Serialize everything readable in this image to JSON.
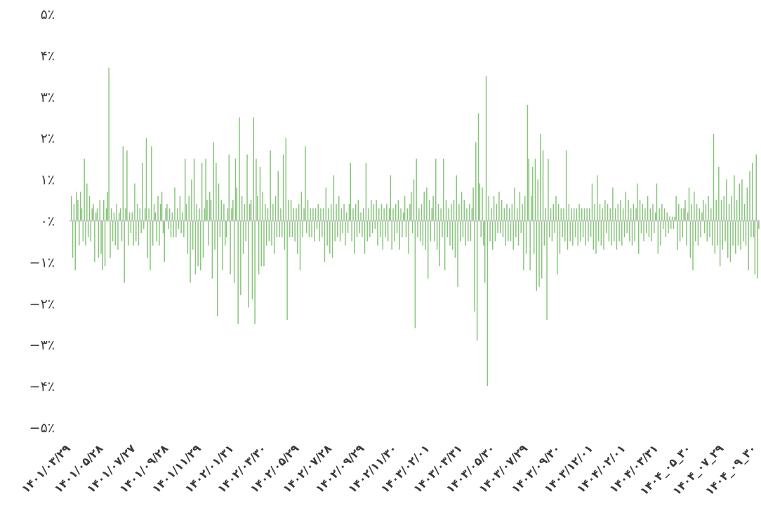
{
  "chart_data": {
    "type": "bar",
    "title": "",
    "xlabel": "",
    "ylabel": "",
    "ylim": [
      -5,
      5
    ],
    "unit": "%",
    "grid": false,
    "legend": "none",
    "zero_line": true,
    "colors": {
      "bar": "#86c47a",
      "zero_line": "#c8c8c8",
      "text": "#3a3a3a"
    },
    "y_tick_values": [
      5,
      4,
      3,
      2,
      1,
      0,
      -1,
      -2,
      -3,
      -4,
      -5
    ],
    "y_tick_labels": [
      "۵٪",
      "۴٪",
      "۳٪",
      "۲٪",
      "۱٪",
      "۰٪",
      "−۱٪",
      "−۲٪",
      "−۳٪",
      "−۴٪",
      "−۵٪"
    ],
    "x_tick_labels": [
      "۱۴۰۱/۰۳/۲۹",
      "۱۴۰۱/۰۵/۲۸",
      "۱۴۰۱/۰۷/۲۷",
      "۱۴۰۱/۰۹/۲۸",
      "۱۴۰۱/۱۱/۲۹",
      "۱۴۰۲/۰۱/۳۱",
      "۱۴۰۲/۰۳/۳۰",
      "۱۴۰۲/۰۵/۲۹",
      "۱۴۰۲/۰۷/۲۸",
      "۱۴۰۲/۰۹/۲۹",
      "۱۴۰۲/۱۱/۳۰",
      "۱۴۰۳/۰۲/۰۱",
      "۱۴۰۳/۰۳/۳۱",
      "۱۴۰۳/۰۵/۳۰",
      "۱۴۰۳/۰۷/۲۹",
      "۱۴۰۳/۰۹/۳۰",
      "۱۴۰۳/۱۲/۰۱",
      "۱۴۰۴/۰۲/۰۱",
      "۱۴۰۴/۰۳/۳۱",
      "۱۴۰۴_۰۵_۳۰",
      "۱۴۰۴_۰۷_۲۹",
      "۱۴۰۴_۰۹_۳۰"
    ],
    "series": [
      {
        "values": [
          0.6,
          -0.9,
          0.4,
          -1.2,
          0.7,
          0.5,
          -0.6,
          0.7,
          0.3,
          -0.5,
          1.5,
          -0.6,
          0.9,
          -0.4,
          0.6,
          -0.5,
          0.3,
          0.4,
          -1.0,
          0.2,
          0.3,
          -0.9,
          0.5,
          -0.8,
          -1.2,
          0.5,
          -1.1,
          0.3,
          0.7,
          3.7,
          -0.9,
          0.3,
          -0.5,
          0.2,
          -0.6,
          0.4,
          -0.7,
          0.2,
          0.3,
          -0.5,
          1.8,
          -1.5,
          0.3,
          1.7,
          -0.6,
          0.2,
          -0.3,
          0.2,
          -0.6,
          0.9,
          -0.5,
          0.4,
          -0.6,
          0.3,
          -0.3,
          1.4,
          -0.2,
          0.3,
          2.0,
          -0.9,
          0.3,
          -1.2,
          1.8,
          -0.6,
          0.4,
          0.2,
          -0.5,
          0.6,
          -0.6,
          0.4,
          0.7,
          -0.3,
          -1.0,
          0.3,
          0.4,
          -0.2,
          0.3,
          -0.4,
          0.2,
          -0.4,
          0.8,
          -0.4,
          0.3,
          -0.2,
          0.6,
          -0.3,
          0.2,
          -0.4,
          1.5,
          0.4,
          -0.8,
          0.6,
          -1.5,
          1.0,
          -0.7,
          1.5,
          -1.3,
          0.4,
          -1.1,
          0.3,
          -1.2,
          1.4,
          -0.9,
          0.3,
          1.5,
          0.5,
          -0.6,
          0.7,
          0.5,
          -1.4,
          1.9,
          -0.7,
          1.4,
          -2.3,
          0.9,
          -0.4,
          0.5,
          -1.2,
          0.4,
          -0.6,
          -0.4,
          0.3,
          1.6,
          -1.3,
          0.3,
          0.5,
          -1.5,
          1.5,
          0.8,
          -2.5,
          2.5,
          -1.8,
          0.6,
          -0.8,
          0.4,
          -0.5,
          1.6,
          -2.1,
          0.4,
          0.5,
          -1.9,
          2.5,
          -2.5,
          1.5,
          0.6,
          -1.3,
          1.3,
          -1.1,
          0.7,
          -1.1,
          0.4,
          -0.6,
          0.3,
          -0.5,
          1.7,
          -0.6,
          0.4,
          -0.8,
          0.6,
          -0.4,
          1.2,
          -0.4,
          0.3,
          -0.4,
          1.6,
          -0.7,
          2.0,
          -2.4,
          0.5,
          -0.4,
          0.5,
          -0.4,
          0.3,
          -0.5,
          0.3,
          -0.8,
          0.4,
          -1.2,
          0.7,
          -0.4,
          0.3,
          1.8,
          -0.3,
          0.5,
          -0.4,
          0.3,
          -0.4,
          0.3,
          -0.5,
          0.3,
          -0.2,
          0.4,
          -0.5,
          0.3,
          -0.4,
          0.3,
          -1.0,
          0.8,
          -0.6,
          0.3,
          -0.8,
          0.4,
          -0.9,
          1.1,
          -0.5,
          0.4,
          -0.4,
          0.6,
          -0.5,
          0.3,
          -0.3,
          0.4,
          -0.6,
          0.2,
          -0.3,
          0.4,
          1.4,
          -0.5,
          0.3,
          -0.8,
          0.4,
          -0.4,
          0.5,
          -0.3,
          0.2,
          -0.4,
          0.3,
          -0.8,
          1.4,
          -0.5,
          0.3,
          -0.4,
          0.5,
          -0.3,
          0.4,
          -0.2,
          0.5,
          -0.6,
          0.3,
          -0.4,
          0.4,
          -0.7,
          0.3,
          -0.4,
          0.4,
          -0.5,
          0.3,
          1.1,
          -0.7,
          0.3,
          -0.5,
          0.4,
          -0.3,
          0.5,
          -0.7,
          0.3,
          -0.4,
          0.2,
          0.6,
          -0.4,
          0.3,
          -0.8,
          0.4,
          0.7,
          -0.3,
          1.0,
          -2.6,
          1.5,
          -0.4,
          0.3,
          -0.5,
          0.4,
          -0.6,
          0.7,
          -0.7,
          0.8,
          -1.4,
          0.5,
          -0.5,
          0.3,
          0.6,
          -0.5,
          1.5,
          -0.7,
          0.4,
          -1.1,
          0.3,
          -0.4,
          1.5,
          -1.2,
          0.5,
          -0.4,
          0.3,
          -0.6,
          0.4,
          -0.7,
          0.5,
          -0.9,
          1.1,
          -1.6,
          0.4,
          -0.5,
          0.7,
          -0.4,
          0.5,
          -0.6,
          0.3,
          -0.5,
          0.4,
          -0.5,
          0.3,
          0.8,
          -2.2,
          1.9,
          -2.9,
          2.6,
          0.9,
          -0.4,
          0.8,
          -0.6,
          -1.5,
          3.5,
          -4.0,
          0.6,
          -0.5,
          0.3,
          -0.7,
          0.6,
          -0.5,
          0.4,
          -0.3,
          0.7,
          -0.3,
          0.5,
          -0.4,
          0.3,
          -0.6,
          0.4,
          -0.5,
          0.3,
          -0.5,
          0.4,
          -0.7,
          0.8,
          -0.4,
          0.3,
          -0.6,
          0.7,
          -0.3,
          0.4,
          -1.2,
          0.6,
          -0.8,
          2.8,
          1.5,
          -1.2,
          0.6,
          1.3,
          -0.8,
          1.5,
          -1.7,
          1.0,
          -1.6,
          2.1,
          -1.4,
          1.7,
          -0.6,
          0.3,
          -2.4,
          1.5,
          -0.4,
          0.3,
          -0.5,
          0.4,
          -0.3,
          0.6,
          -1.3,
          0.4,
          -0.8,
          0.3,
          -0.4,
          0.3,
          -0.5,
          1.7,
          -0.7,
          0.4,
          -0.5,
          0.3,
          -0.6,
          0.3,
          -0.4,
          0.3,
          -0.6,
          0.4,
          -0.5,
          0.3,
          -0.4,
          0.3,
          -0.6,
          0.3,
          -0.5,
          0.3,
          -0.4,
          0.9,
          -0.7,
          0.4,
          -0.8,
          1.1,
          -0.5,
          0.4,
          -0.6,
          0.3,
          -0.7,
          0.5,
          -0.3,
          0.4,
          -0.5,
          0.3,
          -0.6,
          0.8,
          -0.5,
          0.3,
          -0.7,
          0.4,
          -0.5,
          0.5,
          -0.6,
          0.3,
          -0.4,
          0.7,
          -0.3,
          0.5,
          -0.5,
          0.3,
          -0.6,
          0.4,
          -0.5,
          0.3,
          0.9,
          -0.8,
          0.5,
          -0.3,
          0.4,
          -0.5,
          0.3,
          -0.3,
          0.6,
          -0.4,
          0.3,
          -0.5,
          0.4,
          -0.3,
          0.2,
          0.9,
          -0.8,
          0.3,
          -0.6,
          0.4,
          -0.2,
          0.3,
          -0.4,
          0.2,
          -0.3,
          0.1,
          -0.2,
          0.1,
          -0.2,
          0.1,
          0.6,
          -0.7,
          0.4,
          -0.5,
          0.3,
          -0.4,
          0.3,
          0.5,
          -0.6,
          0.2,
          0.8,
          -0.9,
          0.4,
          -1.2,
          0.7,
          -0.5,
          0.4,
          -0.6,
          0.3,
          -0.4,
          0.2,
          0.5,
          -0.3,
          0.4,
          -0.5,
          0.6,
          -0.4,
          0.3,
          -0.6,
          2.1,
          -0.8,
          0.5,
          -0.6,
          1.3,
          -1.1,
          0.5,
          -0.7,
          0.6,
          -0.5,
          1.0,
          -0.9,
          0.4,
          -1.0,
          0.6,
          -0.6,
          1.1,
          -0.8,
          0.5,
          -0.6,
          0.9,
          -0.7,
          1.0,
          -0.5,
          0.4,
          -0.6,
          0.8,
          -1.2,
          1.2,
          -0.4,
          1.4,
          -0.4,
          -1.3,
          1.6,
          -1.4,
          -0.2
        ]
      }
    ]
  }
}
